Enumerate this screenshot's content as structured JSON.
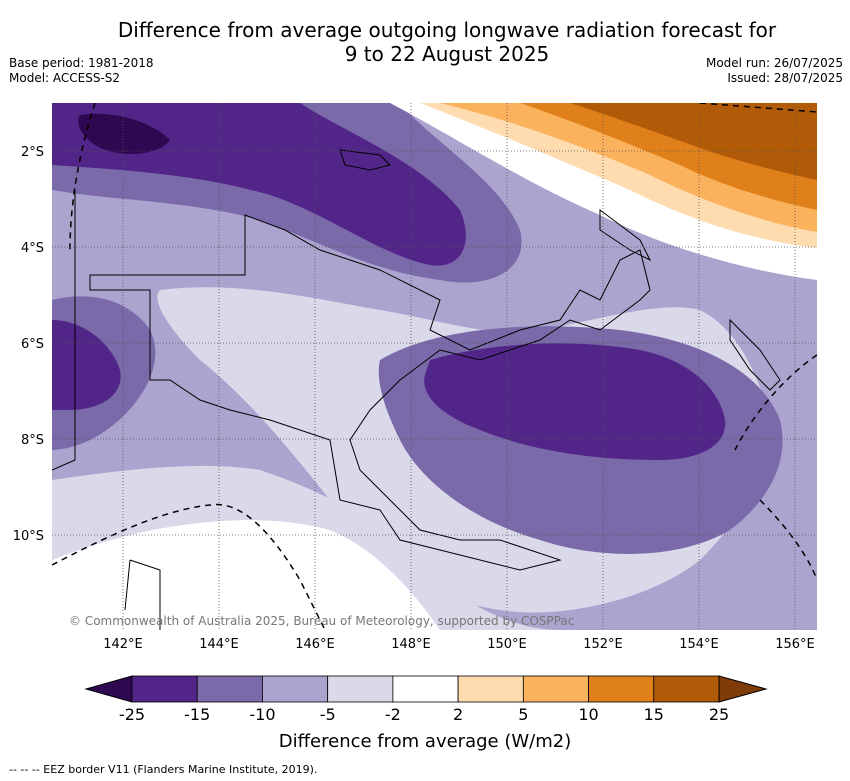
{
  "title_line1": "Difference from average outgoing longwave radiation forecast for",
  "title_line2": "9 to 22 August 2025",
  "meta_left": [
    "Base period: 1981-2018",
    "Model: ACCESS-S2"
  ],
  "meta_right": [
    "Model run: 26/07/2025",
    "Issued: 28/07/2025"
  ],
  "copyright": "© Commonwealth of Australia 2025, Bureau of Meteorology, supported by COSPPac",
  "footnote": "-- -- -- EEZ border V11 (Flanders Marine Institute, 2019).",
  "lat_labels": [
    "2°S",
    "4°S",
    "6°S",
    "8°S",
    "10°S"
  ],
  "lon_labels": [
    "142°E",
    "144°E",
    "146°E",
    "148°E",
    "150°E",
    "152°E",
    "154°E",
    "156°E"
  ],
  "colorbar": {
    "title": "Difference from average (W/m2)",
    "ticks": [
      "-25",
      "-15",
      "-10",
      "-5",
      "-2",
      "2",
      "5",
      "10",
      "15",
      "25"
    ],
    "colors": [
      "#522688",
      "#7b6aaa",
      "#aba4cf",
      "#d9d9ea",
      "#ffffff",
      "#fedcb0",
      "#fbb25d",
      "#e0801b",
      "#b15a07"
    ],
    "under_color": "#2e0850",
    "over_color": "#7f3b08"
  }
}
